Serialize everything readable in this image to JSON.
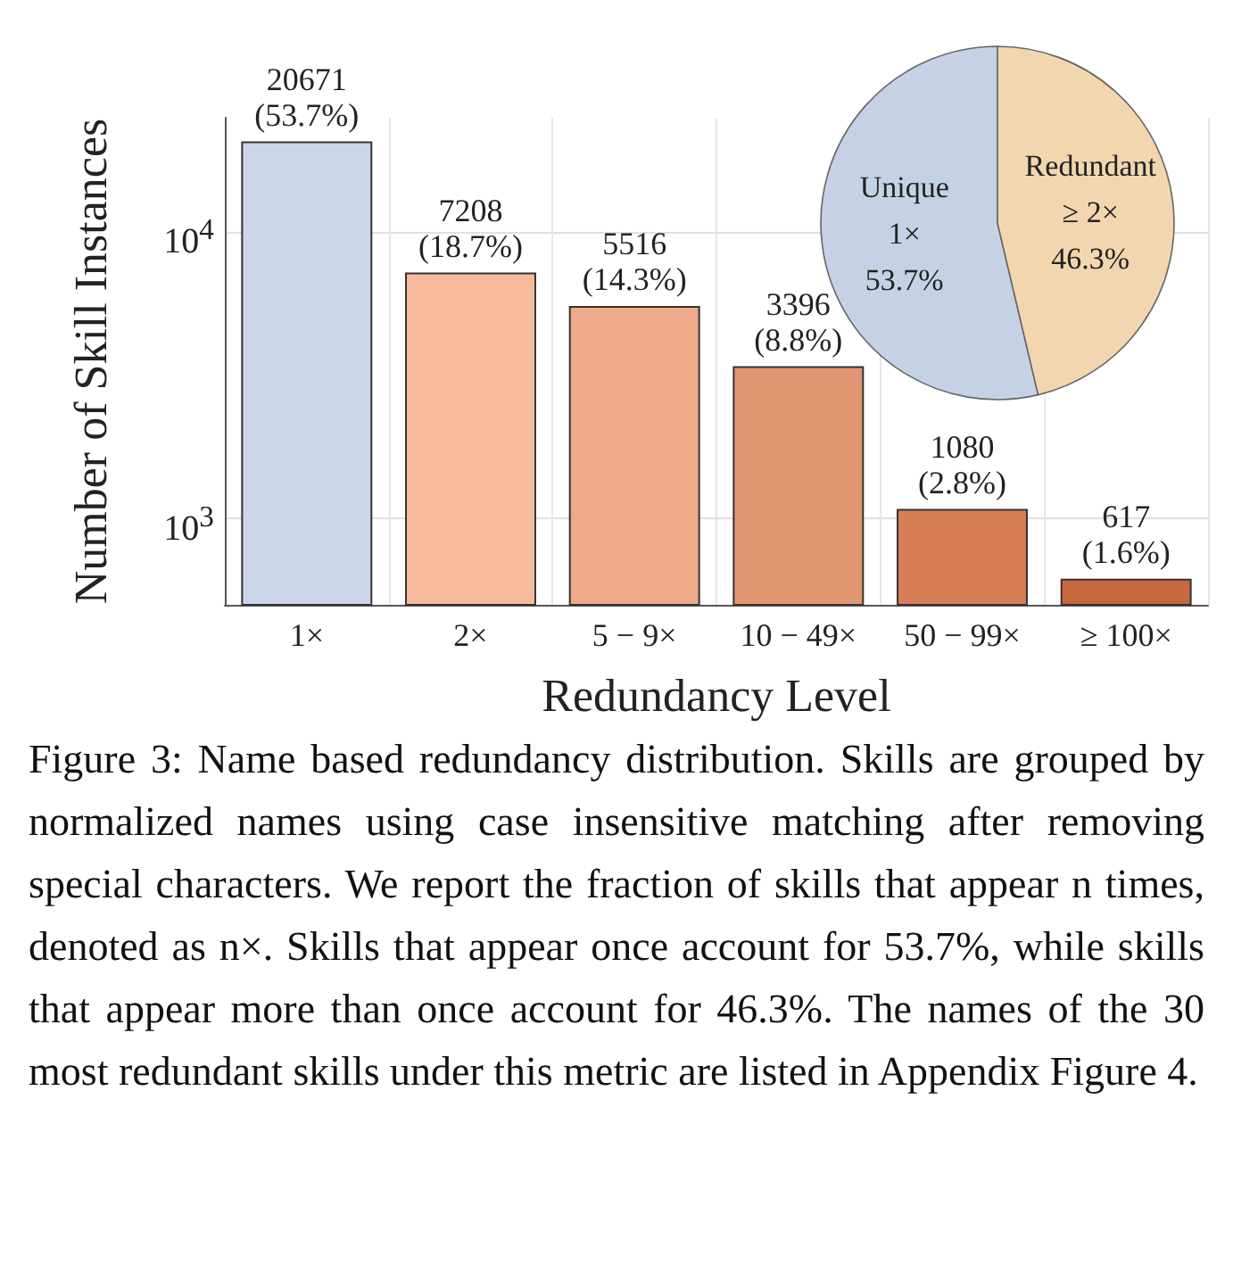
{
  "chart_data": [
    {
      "type": "bar",
      "xlabel": "Redundancy Level",
      "ylabel": "Number of Skill Instances",
      "categories": [
        "1×",
        "2×",
        "5 − 9×",
        "10 − 49×",
        "50 − 99×",
        "≥ 100×"
      ],
      "values": [
        20671,
        7208,
        5516,
        3396,
        1080,
        617
      ],
      "colors": [
        "#ccd6ea",
        "#f6bb9c",
        "#eda988",
        "#e39672",
        "#d87e56",
        "#c9673f"
      ],
      "value_labels": [
        "20671\n(53.7%)",
        "7208\n(18.7%)",
        "5516\n(14.3%)",
        "3396\n(8.8%)",
        "1080\n(2.8%)",
        "617\n(1.6%)"
      ],
      "log": "y",
      "ylim": [
        500,
        25000
      ],
      "yticks": [
        {
          "value": 1000,
          "label": "10$^{3}$"
        },
        {
          "value": 10000,
          "label": "10$^{4}$"
        }
      ],
      "grid": true,
      "legend": false,
      "annotations": [
        "Figure 3: Name based redundancy distribution. Skills are grouped by normalized names using case insensitive matching after removing special characters. We report the fraction of skills that appear n times, denoted as n×. Skills that appear once account for 53.7%, while skills that appear more than once account for 46.3%. The names of the 30 most redundant skills under this metric are listed in Appendix Figure 4."
      ]
    },
    {
      "type": "pie",
      "categories": [
        "Unique\n1×",
        "Redundant\n≥ 2×"
      ],
      "values": [
        53.7,
        46.3
      ],
      "colors": [
        "#c5d2e6",
        "#f2d6b0"
      ],
      "value_labels": [
        "53.7%",
        "46.3%"
      ],
      "legend": false
    }
  ]
}
